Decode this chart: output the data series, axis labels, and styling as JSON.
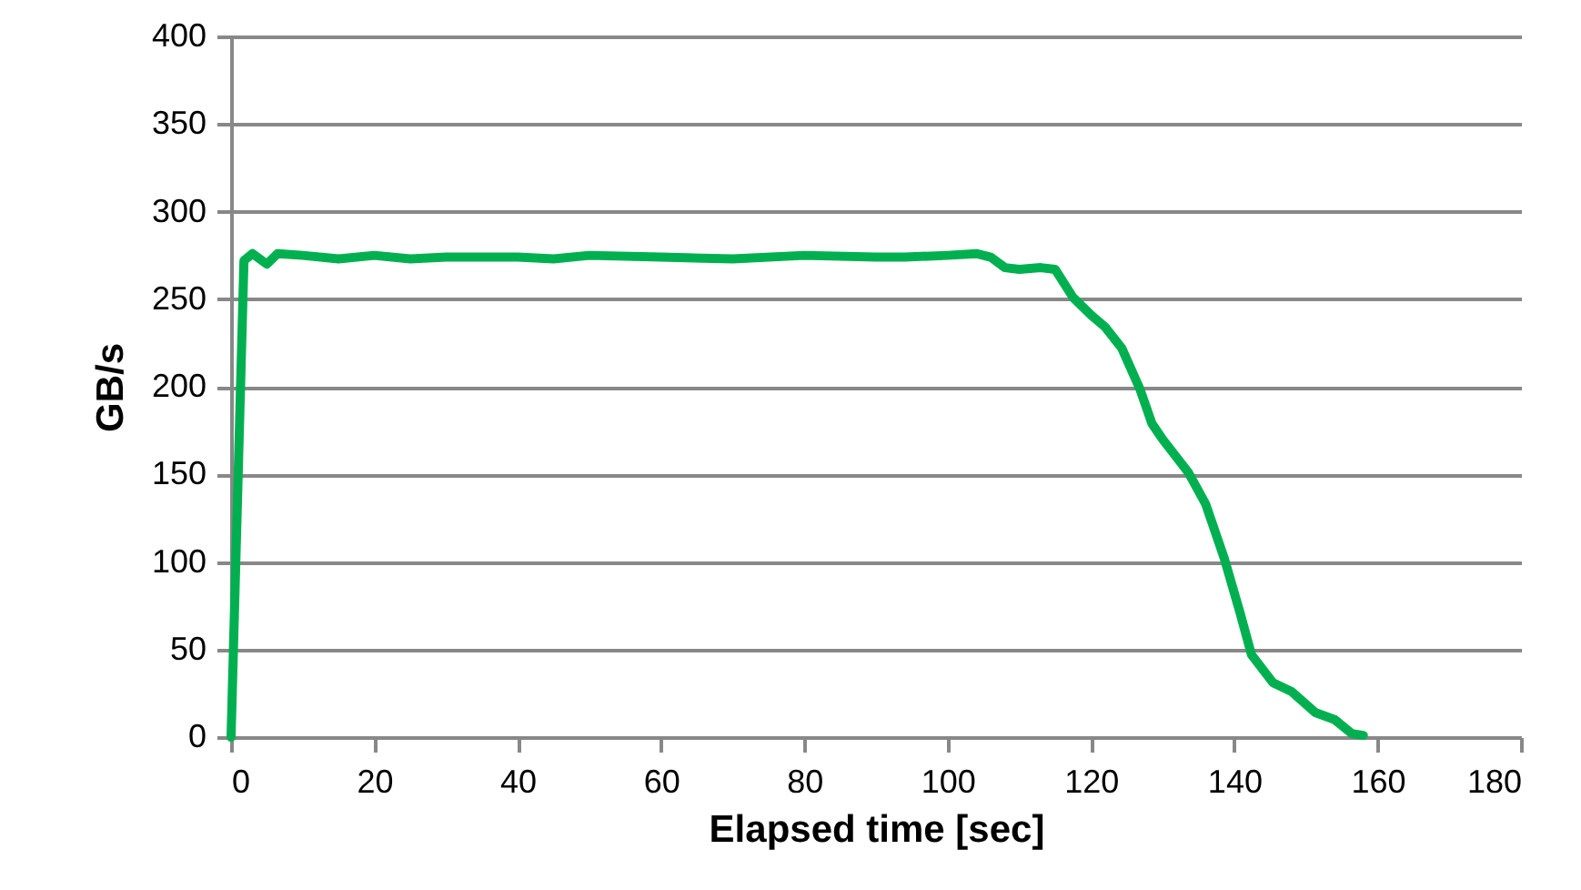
{
  "chart_data": {
    "type": "line",
    "xlabel": "Elapsed time [sec]",
    "ylabel": "GB/s",
    "x": [
      0,
      1.8,
      3,
      5,
      6.5,
      10,
      15,
      20,
      25,
      30,
      40,
      45,
      50,
      60,
      70,
      80,
      90,
      94,
      100,
      104,
      106,
      108,
      110,
      113,
      115,
      117.5,
      120,
      122,
      124.3,
      126.8,
      128.5,
      130,
      133.6,
      136,
      138.6,
      140.8,
      142.4,
      145.4,
      148,
      151.3,
      154,
      156.4,
      158
    ],
    "series": [
      {
        "color": "#00b050",
        "values": [
          0,
          272,
          276,
          270,
          276,
          275,
          273,
          275,
          273,
          274,
          274,
          273,
          275,
          274,
          273,
          275,
          274,
          274,
          275,
          276,
          274,
          268,
          267,
          268,
          267,
          251,
          241,
          234,
          222,
          199,
          179,
          170,
          151,
          133,
          102,
          71,
          47,
          31,
          26,
          14,
          10,
          2,
          1
        ]
      }
    ],
    "xlim": [
      0,
      180
    ],
    "xticks": [
      0,
      20,
      40,
      60,
      80,
      100,
      120,
      140,
      160,
      180
    ],
    "ylim": [
      0,
      400
    ],
    "yticks": [
      0,
      50,
      100,
      150,
      200,
      250,
      300,
      350,
      400
    ],
    "grid": "y",
    "line_style": "solid",
    "marker": "none",
    "legend": false
  }
}
